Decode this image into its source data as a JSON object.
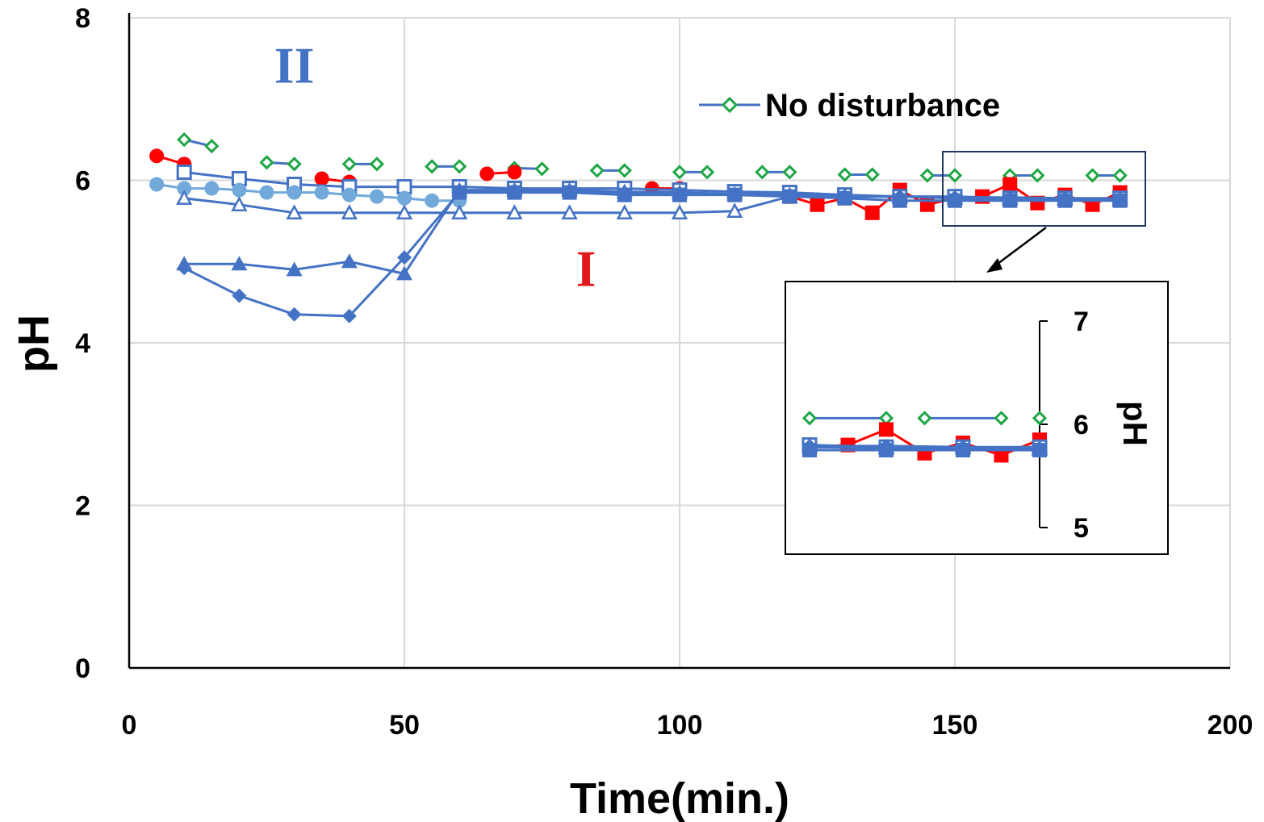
{
  "chart_data": {
    "type": "line",
    "xlabel": "Time(min.)",
    "ylabel": "pH",
    "xlim": [
      0,
      200
    ],
    "ylim": [
      0,
      8
    ],
    "xticks": [
      0,
      50,
      100,
      150,
      200
    ],
    "yticks": [
      0,
      2,
      4,
      6,
      8
    ],
    "grid": true,
    "legend": {
      "position": "top-right",
      "entries": [
        "No disturbance"
      ]
    },
    "annotations": [
      {
        "text": "II",
        "color": "#4472C4",
        "x": 30,
        "y": 7.2
      },
      {
        "text": "I",
        "color": "#E31A1C",
        "x": 83,
        "y": 4.7
      }
    ],
    "series": [
      {
        "name": "No disturbance",
        "color": "#4472C4",
        "marker": "diamond-open-green",
        "markerColor": "#1EA645",
        "linked": false,
        "x": [
          10,
          15,
          25,
          30,
          40,
          45,
          55,
          60,
          70,
          75,
          85,
          90,
          100,
          105,
          115,
          120,
          130,
          135,
          145,
          150,
          160,
          165,
          175,
          180
        ],
        "y": [
          6.5,
          6.42,
          6.22,
          6.2,
          6.2,
          6.2,
          6.17,
          6.17,
          6.15,
          6.14,
          6.12,
          6.12,
          6.1,
          6.1,
          6.1,
          6.1,
          6.07,
          6.07,
          6.06,
          6.06,
          6.06,
          6.06,
          6.06,
          6.06
        ]
      },
      {
        "color": "#FF0000",
        "marker": "circle",
        "markerColor": "#FF0000",
        "linked": false,
        "x": [
          5,
          10,
          35,
          40,
          65,
          70,
          95,
          100
        ],
        "y": [
          6.3,
          6.2,
          6.02,
          5.98,
          6.08,
          6.1,
          5.9,
          5.9
        ]
      },
      {
        "color": "#FF0000",
        "marker": "square",
        "markerColor": "#FF0000",
        "linked": true,
        "x": [
          120,
          125,
          130,
          135,
          140,
          145,
          150,
          155,
          160,
          165,
          170,
          175,
          180
        ],
        "y": [
          5.8,
          5.7,
          5.78,
          5.6,
          5.88,
          5.7,
          5.78,
          5.8,
          5.95,
          5.72,
          5.82,
          5.7,
          5.85
        ]
      },
      {
        "color": "#4472C4",
        "marker": "square-open",
        "markerColor": "#4472C4",
        "linked": true,
        "x": [
          10,
          20,
          30,
          40,
          50,
          60,
          70,
          80,
          90,
          100,
          110,
          120,
          130,
          140,
          150,
          160,
          170,
          180
        ],
        "y": [
          6.1,
          6.02,
          5.95,
          5.92,
          5.92,
          5.92,
          5.9,
          5.9,
          5.9,
          5.88,
          5.86,
          5.85,
          5.82,
          5.8,
          5.8,
          5.78,
          5.78,
          5.78
        ]
      },
      {
        "color": "#71A9DB",
        "marker": "circle",
        "markerColor": "#71A9DB",
        "linked": true,
        "x": [
          5,
          10,
          15,
          20,
          25,
          30,
          35,
          40,
          45,
          50,
          55,
          60
        ],
        "y": [
          5.95,
          5.9,
          5.9,
          5.88,
          5.85,
          5.85,
          5.85,
          5.82,
          5.8,
          5.78,
          5.75,
          5.75
        ]
      },
      {
        "color": "#4472C4",
        "marker": "triangle-open",
        "markerColor": "#4472C4",
        "linked": true,
        "x": [
          10,
          20,
          30,
          40,
          50,
          60,
          70,
          80,
          90,
          100,
          110,
          120,
          130,
          140,
          150,
          160,
          170,
          180
        ],
        "y": [
          5.78,
          5.7,
          5.6,
          5.6,
          5.6,
          5.6,
          5.6,
          5.6,
          5.6,
          5.6,
          5.62,
          5.8,
          5.8,
          5.8,
          5.78,
          5.78,
          5.78,
          5.76
        ]
      },
      {
        "color": "#4472C4",
        "marker": "triangle",
        "markerColor": "#4472C4",
        "linked": true,
        "x": [
          10,
          20,
          30,
          40,
          50,
          60,
          70,
          80,
          90,
          100,
          110,
          120,
          130,
          140,
          150,
          160,
          170,
          180
        ],
        "y": [
          4.97,
          4.97,
          4.9,
          5.0,
          4.85,
          5.88,
          5.88,
          5.88,
          5.86,
          5.85,
          5.83,
          5.82,
          5.8,
          5.8,
          5.78,
          5.77,
          5.77,
          5.77
        ]
      },
      {
        "color": "#4472C4",
        "marker": "diamond",
        "markerColor": "#4472C4",
        "linked": true,
        "x": [
          10,
          20,
          30,
          40,
          50,
          60,
          70,
          80,
          90,
          100,
          110,
          120,
          130,
          140,
          150,
          160,
          170,
          180
        ],
        "y": [
          4.92,
          4.58,
          4.35,
          4.33,
          5.05,
          5.85,
          5.85,
          5.86,
          5.84,
          5.84,
          5.83,
          5.82,
          5.8,
          5.8,
          5.79,
          5.79,
          5.78,
          5.77
        ]
      },
      {
        "color": "#4472C4",
        "marker": "square",
        "markerColor": "#4472C4",
        "linked": true,
        "x": [
          60,
          70,
          80,
          90,
          100,
          110,
          120,
          130,
          140,
          150,
          160,
          170,
          180
        ],
        "y": [
          5.85,
          5.85,
          5.85,
          5.82,
          5.82,
          5.82,
          5.8,
          5.78,
          5.75,
          5.75,
          5.75,
          5.75,
          5.75
        ]
      }
    ],
    "inset": {
      "ylabel": "pH",
      "xlim": [
        150,
        180
      ],
      "ylim": [
        5,
        7
      ],
      "yticks": [
        5,
        6,
        7
      ]
    }
  }
}
